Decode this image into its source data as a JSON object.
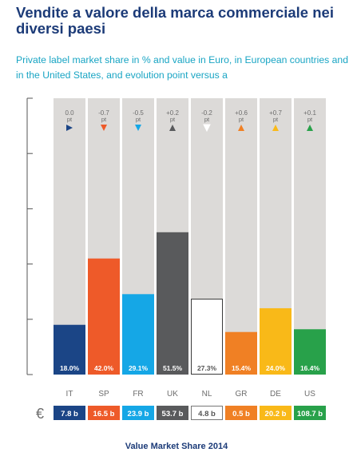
{
  "title": "Vendite a valore della marca commerciale nei diversi paesi",
  "subtitle": "Private label market share in % and value in Euro, in European countries and in the United States, and evolution point versus a",
  "footer": "Value Market Share 2014",
  "currency_symbol": "€",
  "colors": {
    "background_bar": "#dcdad8",
    "axis": "#555555",
    "muted_text": "#6d6d6d",
    "title": "#1c3b78",
    "subtitle": "#19a5c4"
  },
  "chart_data": {
    "type": "bar",
    "categories": [
      "IT",
      "SP",
      "FR",
      "UK",
      "NL",
      "GR",
      "DE",
      "US"
    ],
    "values": [
      18.0,
      42.0,
      29.1,
      51.5,
      27.3,
      15.4,
      24.0,
      16.4
    ],
    "value_labels": [
      "18.0%",
      "42.0%",
      "29.1%",
      "51.5%",
      "27.3%",
      "15.4%",
      "24.0%",
      "16.4%"
    ],
    "evolution_labels": [
      "0.0",
      "-0.7",
      "-0.5",
      "+0.2",
      "-0.2",
      "+0.6",
      "+0.7",
      "+0.1"
    ],
    "evolution_unit": "pt",
    "evolution_direction": [
      "neutral",
      "down",
      "down",
      "up",
      "down",
      "up",
      "up",
      "up"
    ],
    "value_euro": [
      "7.8 b",
      "16.5 b",
      "23.9 b",
      "53.7 b",
      "4.8 b",
      "0.5 b",
      "20.2 b",
      "108.7 b"
    ],
    "colors": [
      "#1b4586",
      "#ee5a29",
      "#15a7e6",
      "#595a5c",
      "#ffffff",
      "#f08024",
      "#f9b918",
      "#28a14a"
    ],
    "ylim": [
      0,
      100
    ],
    "xlabel": "",
    "ylabel": "",
    "grid": false
  }
}
